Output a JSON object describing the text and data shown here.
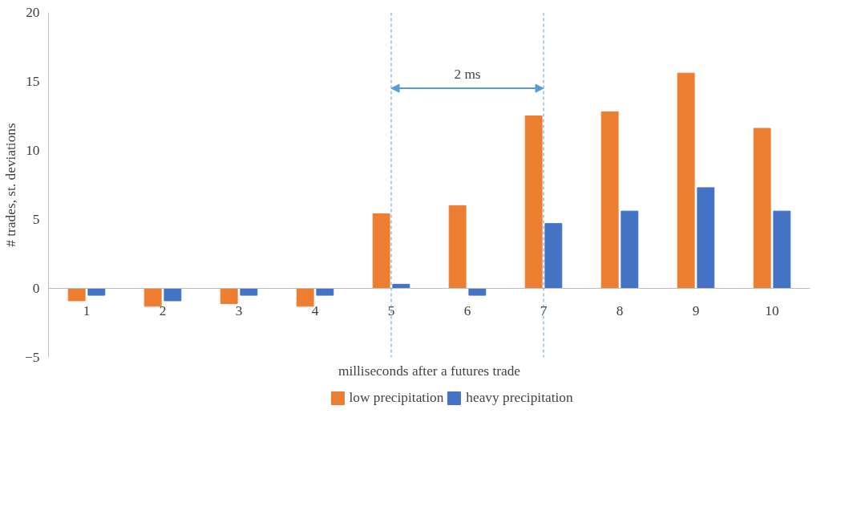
{
  "chart_data": {
    "type": "bar",
    "xlabel": "milliseconds after a futures trade",
    "ylabel": "# trades, st. deviations",
    "categories": [
      "1",
      "2",
      "3",
      "4",
      "5",
      "6",
      "7",
      "8",
      "9",
      "10"
    ],
    "series": [
      {
        "name": "low precipitation",
        "color": "#ed7d31",
        "values": [
          -0.9,
          -1.3,
          -1.1,
          -1.3,
          5.4,
          6.0,
          12.5,
          12.8,
          15.6,
          11.6
        ]
      },
      {
        "name": "heavy precipitation",
        "color": "#4472c4",
        "values": [
          -0.5,
          -0.9,
          -0.5,
          -0.5,
          0.3,
          -0.5,
          4.7,
          5.6,
          7.3,
          5.6
        ]
      }
    ],
    "ylim": [
      -5,
      20
    ],
    "yticks": [
      -5,
      0,
      5,
      10,
      15,
      20
    ],
    "grid": false,
    "legend": "bottom",
    "ref_lines": [
      {
        "axis": "x",
        "value": "5",
        "color": "#5b9bd5",
        "line_style": "dashed"
      },
      {
        "axis": "x",
        "value": "7",
        "color": "#5b9bd5",
        "line_style": "dashed"
      }
    ],
    "annotations": [
      "2 ms"
    ]
  }
}
